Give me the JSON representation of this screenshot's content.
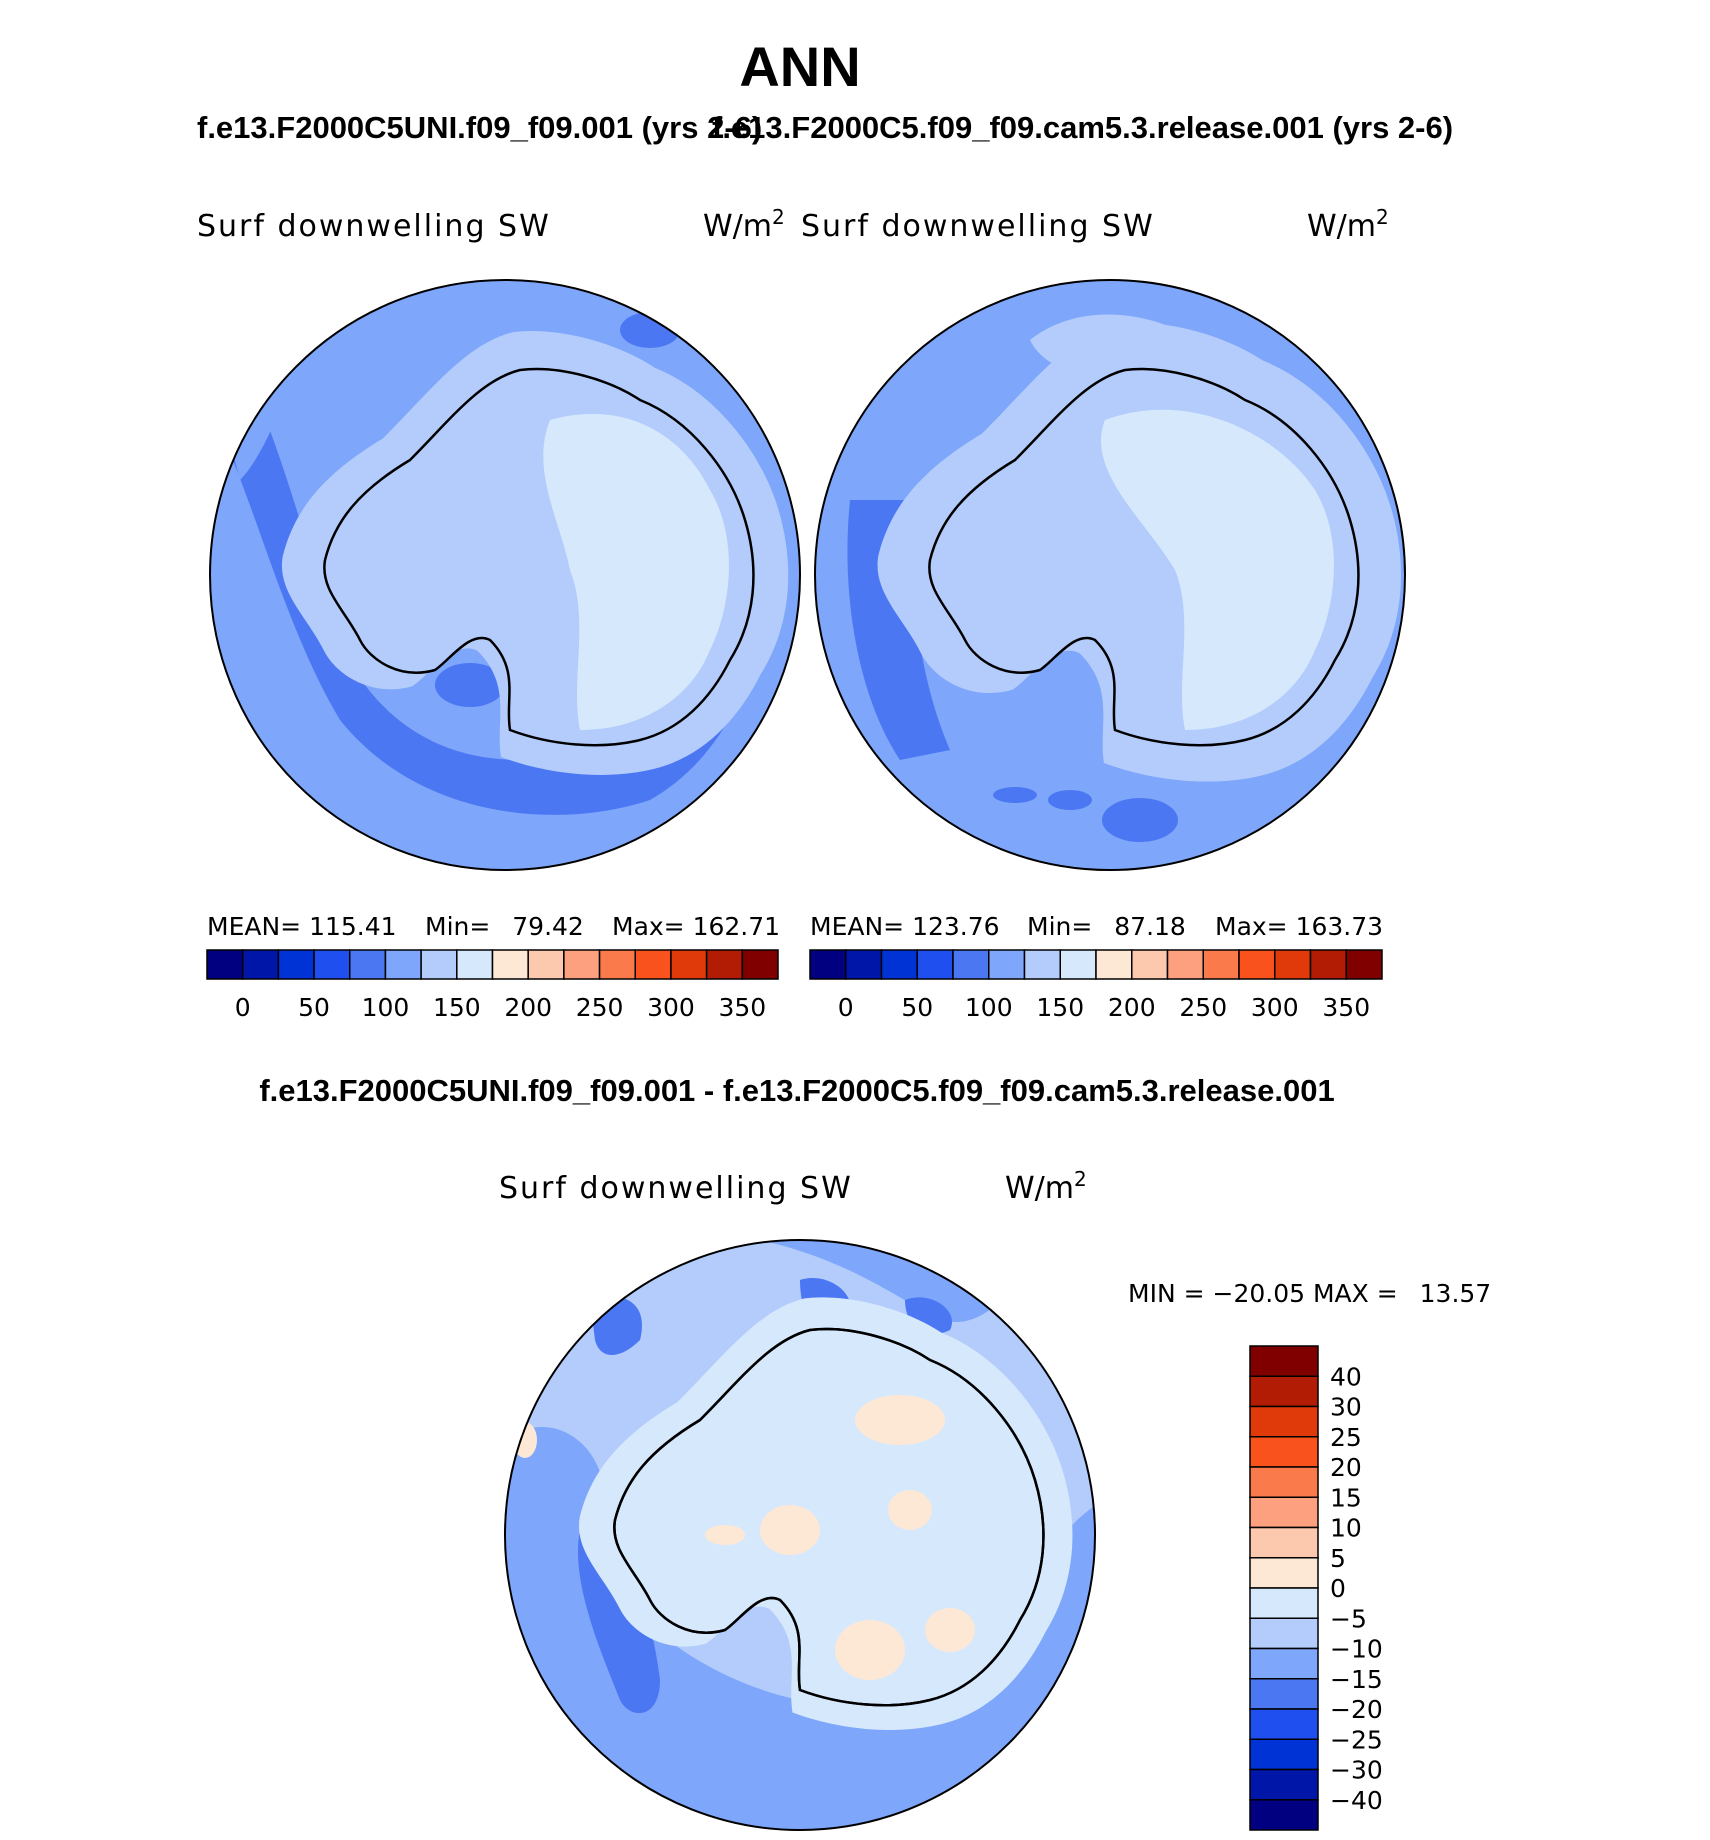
{
  "title": "ANN",
  "top_left": {
    "case_title": "f.e13.F2000C5UNI.f09_f09.001 (yrs 2-6)",
    "variable": "Surf downwelling SW",
    "units": "W/m",
    "units_exp": "2",
    "stats": {
      "mean_label": "MEAN=",
      "mean": "115.41",
      "min_label": "Min=",
      "min": "79.42",
      "max_label": "Max=",
      "max": "162.71"
    },
    "colorbar_ticks": [
      "0",
      "50",
      "100",
      "150",
      "200",
      "250",
      "300",
      "350"
    ]
  },
  "top_right": {
    "case_title": "f.e13.F2000C5.f09_f09.cam5.3.release.001 (yrs 2-6)",
    "variable": "Surf downwelling SW",
    "units": "W/m",
    "units_exp": "2",
    "stats": {
      "mean_label": "MEAN=",
      "mean": "123.76",
      "min_label": "Min=",
      "min": "87.18",
      "max_label": "Max=",
      "max": "163.73"
    },
    "colorbar_ticks": [
      "0",
      "50",
      "100",
      "150",
      "200",
      "250",
      "300",
      "350"
    ]
  },
  "diff": {
    "case_title": "f.e13.F2000C5UNI.f09_f09.001 - f.e13.F2000C5.f09_f09.cam5.3.release.001",
    "variable": "Surf downwelling SW",
    "units": "W/m",
    "units_exp": "2",
    "minmax": {
      "min_label": "MIN =",
      "min": "−20.05",
      "max_label": "MAX =",
      "max": "13.57"
    },
    "colorbar_labels": [
      "40",
      "30",
      "25",
      "20",
      "15",
      "10",
      "5",
      "0",
      "−5",
      "−10",
      "−15",
      "−20",
      "−25",
      "−30",
      "−40"
    ]
  },
  "colors": {
    "abs_scale": [
      "#000080",
      "#0016a8",
      "#0033d6",
      "#1f4fef",
      "#4b78f2",
      "#7ea6fa",
      "#b3ccfb",
      "#d6e8fc",
      "#fde8d6",
      "#fcc9ae",
      "#fca07f",
      "#fb7a4c",
      "#f9521d",
      "#e03a0b",
      "#b21c04",
      "#800000"
    ],
    "diff_scale": [
      "#800000",
      "#b21c04",
      "#e03a0b",
      "#f9521d",
      "#fb7a4c",
      "#fca07f",
      "#fcc9ae",
      "#fde8d6",
      "#d6e8fc",
      "#b3ccfb",
      "#7ea6fa",
      "#4b78f2",
      "#1f4fef",
      "#0033d6",
      "#0016a8",
      "#000080"
    ]
  }
}
